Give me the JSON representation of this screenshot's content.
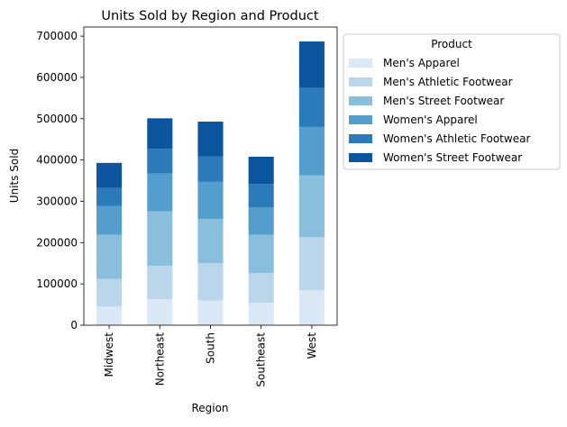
{
  "chart_data": {
    "type": "bar",
    "stacked": true,
    "title": "Units Sold by Region and Product",
    "xlabel": "Region",
    "ylabel": "Units Sold",
    "categories": [
      "Midwest",
      "Northeast",
      "South",
      "Southeast",
      "West"
    ],
    "ylim": [
      0,
      722000
    ],
    "yticks": [
      0,
      100000,
      200000,
      300000,
      400000,
      500000,
      600000,
      700000
    ],
    "legend": {
      "title": "Product",
      "placement": "outside-right"
    },
    "grid": false,
    "series": [
      {
        "name": "Men's Apparel",
        "color": "#dbe9f6",
        "values": [
          45000,
          63000,
          60000,
          54000,
          85000
        ]
      },
      {
        "name": "Men's Athletic Footwear",
        "color": "#bad6eb",
        "values": [
          67000,
          81000,
          90000,
          72000,
          128000
        ]
      },
      {
        "name": "Men's Street Footwear",
        "color": "#89bedc",
        "values": [
          107000,
          132000,
          107000,
          93000,
          150000
        ]
      },
      {
        "name": "Women's Apparel",
        "color": "#539ecd",
        "values": [
          70000,
          91000,
          90000,
          66000,
          117000
        ]
      },
      {
        "name": "Women's Athletic Footwear",
        "color": "#2b7bba",
        "values": [
          43000,
          60000,
          62000,
          57000,
          95000
        ]
      },
      {
        "name": "Women's Street Footwear",
        "color": "#0b559f",
        "values": [
          61000,
          74000,
          84000,
          66000,
          112000
        ]
      }
    ]
  }
}
